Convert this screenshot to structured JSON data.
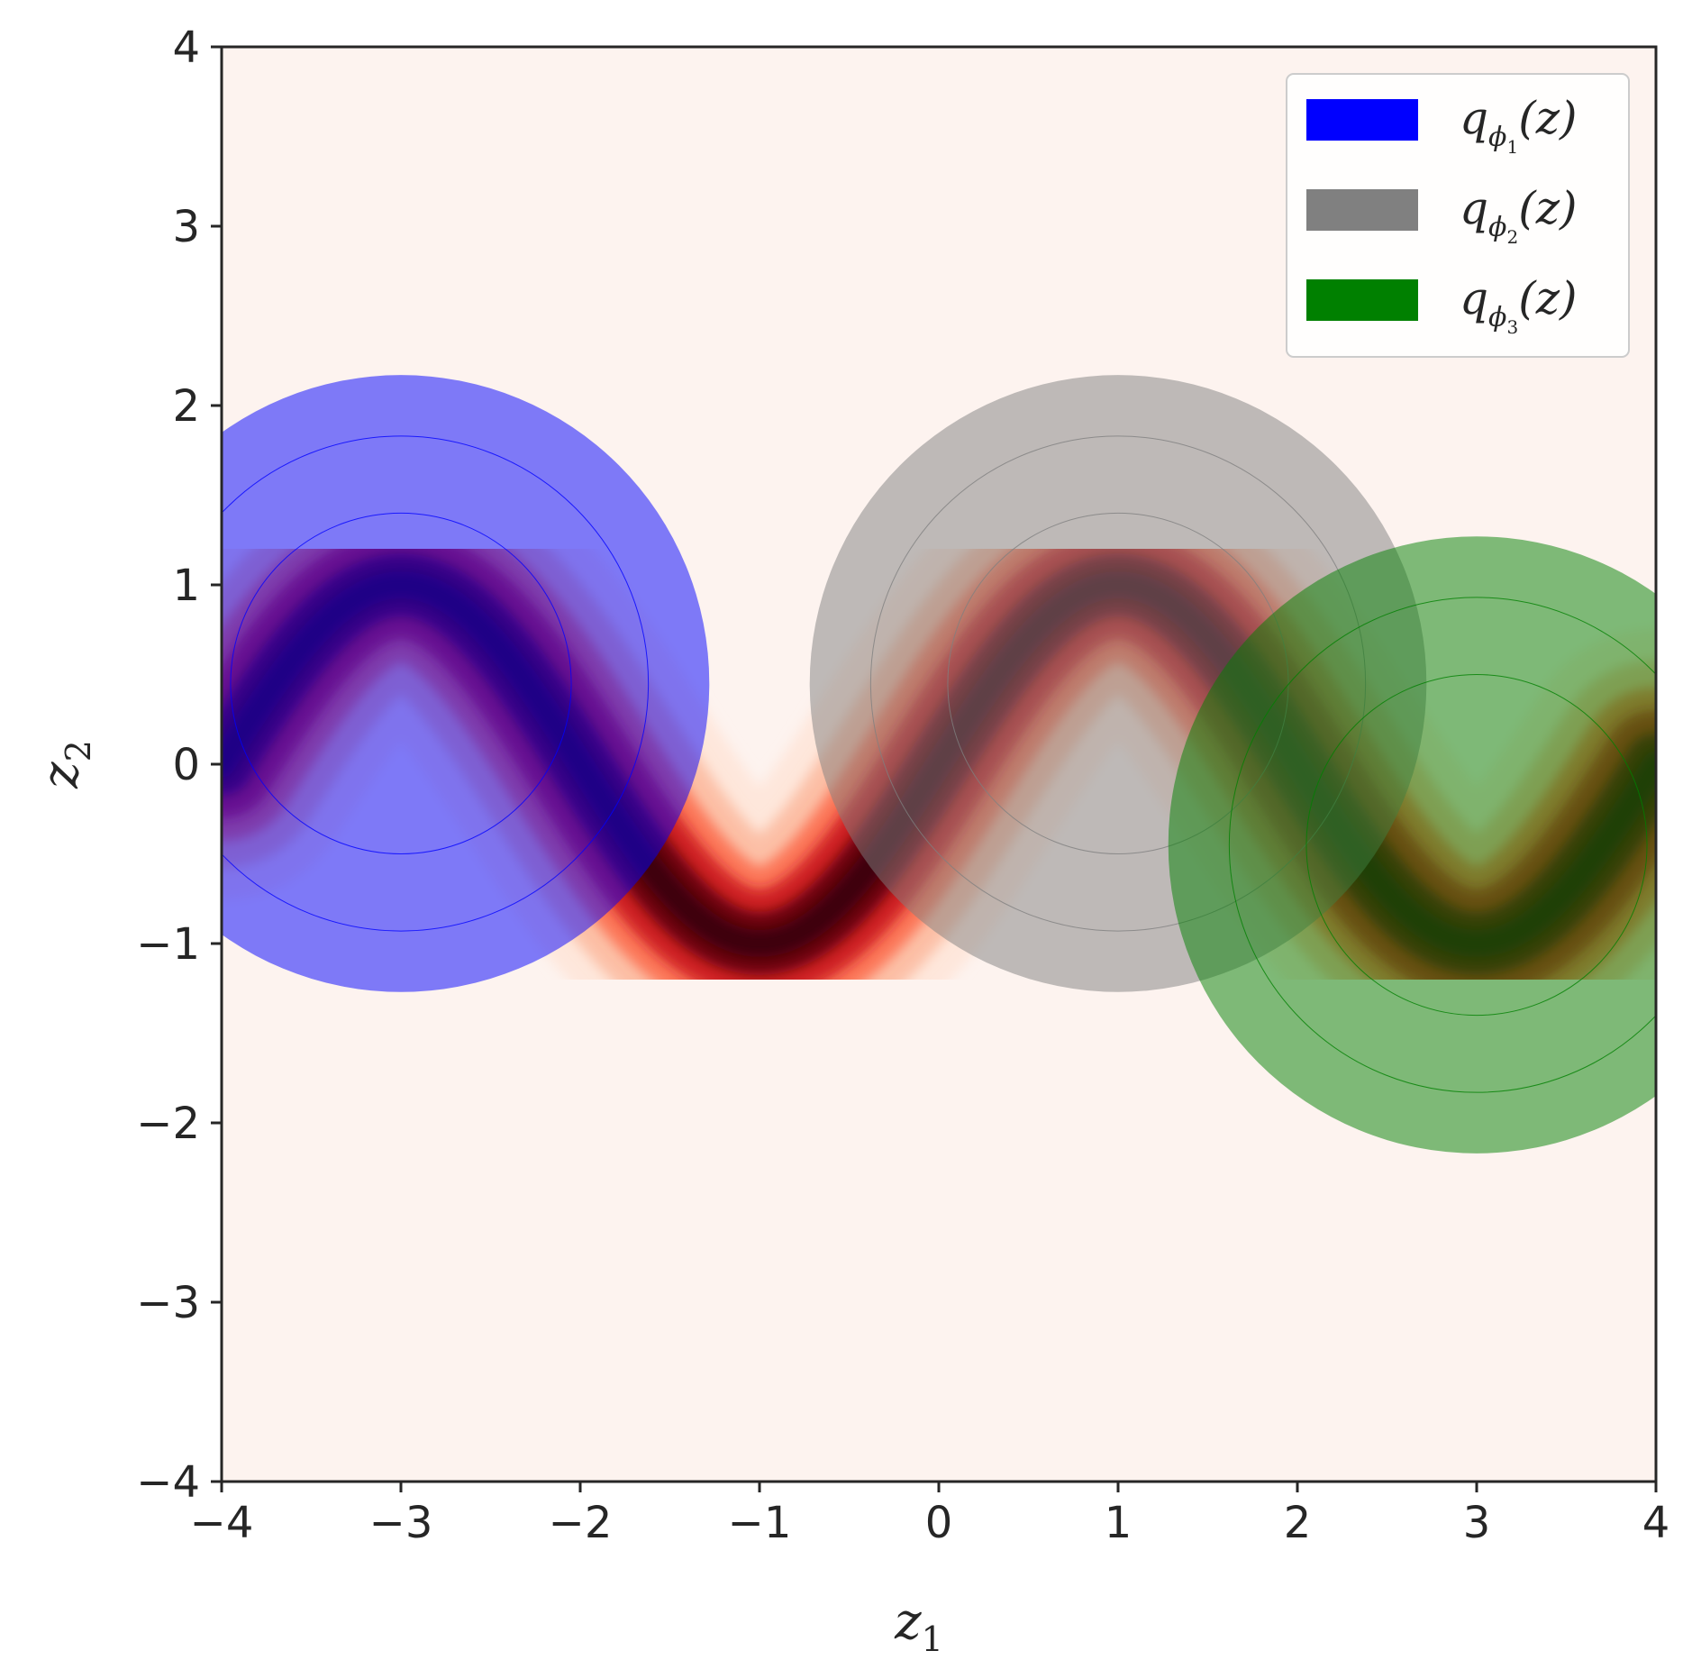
{
  "chart_data": {
    "type": "heatmap",
    "title": "",
    "xlabel": "z",
    "xlabel_sub": "1",
    "ylabel": "z",
    "ylabel_sub": "2",
    "xlim": [
      -4,
      4
    ],
    "ylim": [
      -4,
      4
    ],
    "xticks": [
      -4,
      -3,
      -2,
      -1,
      0,
      1,
      2,
      3,
      4
    ],
    "yticks": [
      -4,
      -3,
      -2,
      -1,
      0,
      1,
      2,
      3,
      4
    ],
    "xtick_labels": [
      "−4",
      "−3",
      "−2",
      "−1",
      "0",
      "1",
      "2",
      "3",
      "4"
    ],
    "ytick_labels": [
      "−4",
      "−3",
      "−2",
      "−1",
      "0",
      "1",
      "2",
      "3",
      "4"
    ],
    "grid": false,
    "legend_position": "top-right",
    "density": {
      "description_curve": "sin",
      "ridge": "z2 = sin(pi/2 * z1)",
      "colormap": "Reds"
    },
    "series": [
      {
        "name": "q_{φ1}(z)",
        "legend_main": "q",
        "legend_sub": "ϕ",
        "legend_subsub": "1",
        "legend_tail": "(z)",
        "color": "#0000ff",
        "center": [
          -3,
          0.45
        ],
        "radii": [
          0.95,
          1.38,
          1.72
        ],
        "opacity": 0.5
      },
      {
        "name": "q_{φ2}(z)",
        "legend_main": "q",
        "legend_sub": "ϕ",
        "legend_subsub": "2",
        "legend_tail": "(z)",
        "color": "#808080",
        "center": [
          1,
          0.45
        ],
        "radii": [
          0.95,
          1.38,
          1.72
        ],
        "opacity": 0.5
      },
      {
        "name": "q_{φ3}(z)",
        "legend_main": "q",
        "legend_sub": "ϕ",
        "legend_subsub": "3",
        "legend_tail": "(z)",
        "color": "#008000",
        "center": [
          3,
          -0.45
        ],
        "radii": [
          0.95,
          1.38,
          1.72
        ],
        "opacity": 0.5
      }
    ]
  },
  "colors": {
    "background": "#fdf3ef",
    "axis": "#262626",
    "density_dark": "#67000d",
    "density_mid": "#ef3b2c"
  }
}
